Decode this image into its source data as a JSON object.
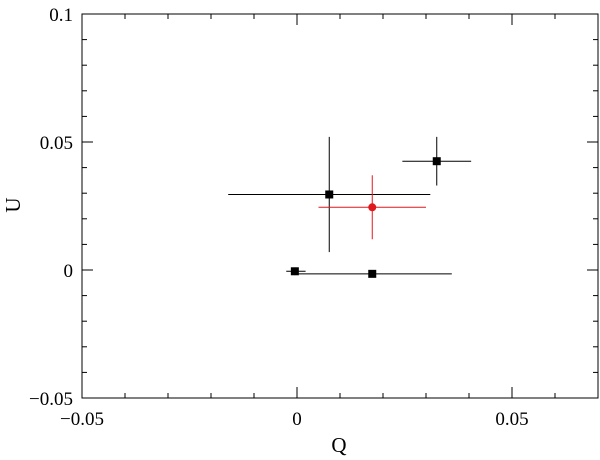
{
  "chart_data": {
    "type": "scatter",
    "title": "",
    "xlabel": "Q",
    "ylabel": "U",
    "xlim": [
      -0.05,
      0.07
    ],
    "ylim": [
      -0.05,
      0.1
    ],
    "x_ticks": [
      {
        "value": -0.05,
        "label": "−0.05"
      },
      {
        "value": 0,
        "label": "0"
      },
      {
        "value": 0.05,
        "label": "0.05"
      }
    ],
    "y_ticks": [
      {
        "value": -0.05,
        "label": "−0.05"
      },
      {
        "value": 0,
        "label": "0"
      },
      {
        "value": 0.05,
        "label": "0.05"
      },
      {
        "value": 0.1,
        "label": "0.1"
      }
    ],
    "x_minor_step": 0.01,
    "y_minor_step": 0.01,
    "grid": false,
    "series": [
      {
        "color": "#000000",
        "marker": "square",
        "points": [
          {
            "x": -0.0005,
            "y": -0.0005,
            "xerr_lo": 0.002,
            "xerr_hi": 0.0025,
            "yerr": 0.0015
          },
          {
            "x": 0.0175,
            "y": -0.0015,
            "xerr_lo": 0.0185,
            "xerr_hi": 0.0185,
            "yerr": 0.0
          },
          {
            "x": 0.0075,
            "y": 0.0295,
            "xerr_lo": 0.0235,
            "xerr_hi": 0.0235,
            "yerr": 0.0225
          },
          {
            "x": 0.0325,
            "y": 0.0425,
            "xerr_lo": 0.008,
            "xerr_hi": 0.008,
            "yerr": 0.0095
          }
        ]
      },
      {
        "color": "#e0191c",
        "marker": "circle",
        "points": [
          {
            "x": 0.0175,
            "y": 0.0245,
            "xerr_lo": 0.0125,
            "xerr_hi": 0.0125,
            "yerr": 0.0125
          }
        ]
      }
    ]
  }
}
